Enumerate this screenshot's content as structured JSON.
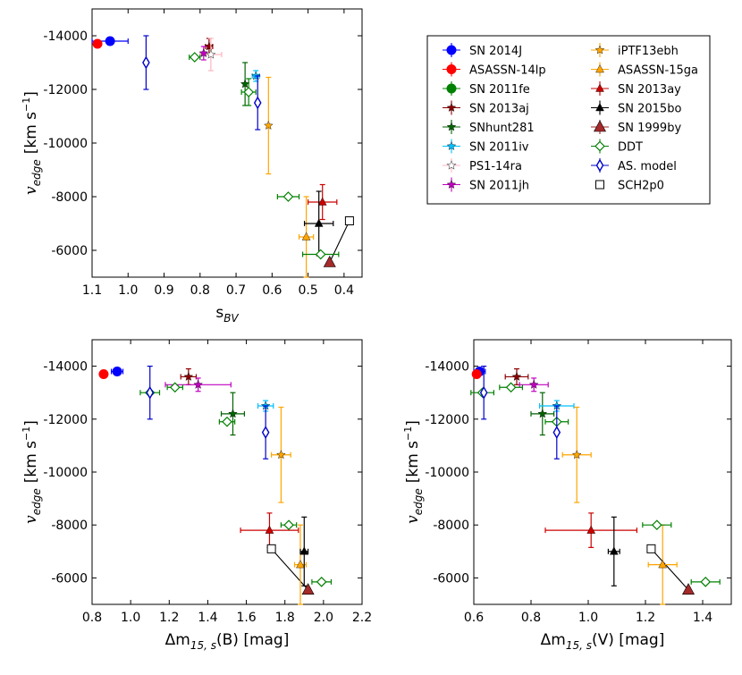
{
  "chart_data": [
    {
      "type": "scatter",
      "id": "top-left",
      "xlabel_main": "s",
      "xlabel_sub": "BV",
      "ylabel_main": "v",
      "ylabel_sub": "edge",
      "ylabel_unit": "[km s",
      "ylabel_exp": "−1",
      "ylabel_close": "]",
      "xlim": [
        1.1,
        0.35
      ],
      "ylim": [
        -5000,
        -15000
      ],
      "xticks": [
        1.1,
        1.0,
        0.9,
        0.8,
        0.7,
        0.6,
        0.5,
        0.4
      ],
      "xtick_labels": [
        "1.1",
        "1.0",
        "0.9",
        "0.8",
        "0.7",
        "0.6",
        "0.5",
        "0.4"
      ],
      "yticks": [
        -14000,
        -12000,
        -10000,
        -8000,
        -6000
      ],
      "ytick_labels": [
        "-14000",
        "-12000",
        "-10000",
        "-8000",
        "-6000"
      ],
      "points": [
        {
          "s": "2014J",
          "x": 1.05,
          "y": -13800,
          "xerr": 0.05
        },
        {
          "s": "14lp",
          "x": 1.085,
          "y": -13700
        },
        {
          "s": "2013aj",
          "x": 0.775,
          "y": -13600,
          "xerr": 0.01,
          "yerr": 300
        },
        {
          "s": "PS1",
          "x": 0.77,
          "y": -13300,
          "xerr": 0.03,
          "yerr": 600
        },
        {
          "s": "2011jh",
          "x": 0.79,
          "y": -13350,
          "yerr": 250
        },
        {
          "s": "hunt",
          "x": 0.675,
          "y": -12200,
          "yerr": 800
        },
        {
          "s": "2011iv",
          "x": 0.645,
          "y": -12500,
          "xerr": 0.01,
          "yerr": 200
        },
        {
          "s": "ebh",
          "x": 0.61,
          "y": -10650,
          "yerr": 1800
        },
        {
          "s": "15ga",
          "x": 0.505,
          "y": -6500,
          "xerr": 0.02,
          "yerr": 1500
        },
        {
          "s": "2013ay",
          "x": 0.46,
          "y": -7800,
          "xerr": 0.04,
          "yerr": 650
        },
        {
          "s": "2015bo",
          "x": 0.47,
          "y": -7000,
          "xerr": 0.04,
          "yerr": 1200
        },
        {
          "s": "1999by",
          "x": 0.44,
          "y": -5550
        },
        {
          "s": "DDT",
          "x": 0.815,
          "y": -13200,
          "xerr": 0.015
        },
        {
          "s": "DDT",
          "x": 0.665,
          "y": -11900,
          "xerr": 0.02,
          "yerr": 500
        },
        {
          "s": "DDT",
          "x": 0.555,
          "y": -8000,
          "xerr": 0.03
        },
        {
          "s": "DDT",
          "x": 0.465,
          "y": -5850,
          "xerr": 0.05
        },
        {
          "s": "AS",
          "x": 0.95,
          "y": -13000,
          "yerr": 1000
        },
        {
          "s": "AS",
          "x": 0.64,
          "y": -11500,
          "yerr": 1000
        },
        {
          "s": "SCH",
          "x": 0.385,
          "y": -7100
        }
      ],
      "line": [
        [
          0.44,
          -5550
        ],
        [
          0.385,
          -7100
        ]
      ]
    },
    {
      "type": "scatter",
      "id": "bottom-left",
      "xlabel_main": "Δm",
      "xlabel_sub": "15, s",
      "xlabel_band": "(B)",
      "xlabel_unit": " [mag]",
      "ylabel_main": "v",
      "ylabel_sub": "edge",
      "ylabel_unit": "[km s",
      "ylabel_exp": "−1",
      "ylabel_close": "]",
      "xlim": [
        0.8,
        2.2
      ],
      "ylim": [
        -5000,
        -15000
      ],
      "xticks": [
        0.8,
        1.0,
        1.2,
        1.4,
        1.6,
        1.8,
        2.0,
        2.2
      ],
      "xtick_labels": [
        "0.8",
        "1.0",
        "1.2",
        "1.4",
        "1.6",
        "1.8",
        "2.0",
        "2.2"
      ],
      "yticks": [
        -14000,
        -12000,
        -10000,
        -8000,
        -6000
      ],
      "ytick_labels": [
        "-14000",
        "-12000",
        "-10000",
        "-8000",
        "-6000"
      ],
      "points": [
        {
          "s": "2014J",
          "x": 0.93,
          "y": -13800,
          "xerr": 0.03
        },
        {
          "s": "14lp",
          "x": 0.86,
          "y": -13700
        },
        {
          "s": "2013aj",
          "x": 1.3,
          "y": -13600,
          "xerr": 0.04,
          "yerr": 300
        },
        {
          "s": "2011jh",
          "x": 1.35,
          "y": -13300,
          "xerr": 0.17,
          "yerr": 250
        },
        {
          "s": "hunt",
          "x": 1.53,
          "y": -12200,
          "xerr": 0.06,
          "yerr": 800
        },
        {
          "s": "2011iv",
          "x": 1.7,
          "y": -12500,
          "xerr": 0.04,
          "yerr": 200
        },
        {
          "s": "ebh",
          "x": 1.78,
          "y": -10650,
          "xerr": 0.05,
          "yerr": 1800
        },
        {
          "s": "15ga",
          "x": 1.88,
          "y": -6500,
          "xerr": 0.03,
          "yerr": 1500
        },
        {
          "s": "2013ay",
          "x": 1.72,
          "y": -7800,
          "xerr": 0.15,
          "yerr": 650
        },
        {
          "s": "2015bo",
          "x": 1.9,
          "y": -7000,
          "xerr": 0.02,
          "yerr": 1300
        },
        {
          "s": "1999by",
          "x": 1.92,
          "y": -5550
        },
        {
          "s": "DDT",
          "x": 1.23,
          "y": -13200,
          "xerr": 0.04
        },
        {
          "s": "DDT",
          "x": 1.1,
          "y": -13000,
          "xerr": 0.05
        },
        {
          "s": "DDT",
          "x": 1.5,
          "y": -11900,
          "xerr": 0.04
        },
        {
          "s": "DDT",
          "x": 1.82,
          "y": -8000,
          "xerr": 0.04
        },
        {
          "s": "DDT",
          "x": 1.99,
          "y": -5850,
          "xerr": 0.05
        },
        {
          "s": "AS",
          "x": 1.1,
          "y": -13000,
          "yerr": 1000
        },
        {
          "s": "AS",
          "x": 1.7,
          "y": -11500,
          "yerr": 1000
        },
        {
          "s": "SCH",
          "x": 1.73,
          "y": -7100
        }
      ],
      "line": [
        [
          1.92,
          -5550
        ],
        [
          1.73,
          -7100
        ]
      ]
    },
    {
      "type": "scatter",
      "id": "bottom-right",
      "xlabel_main": "Δm",
      "xlabel_sub": "15, s",
      "xlabel_band": "(V)",
      "xlabel_unit": " [mag]",
      "ylabel_main": "v",
      "ylabel_sub": "edge",
      "ylabel_unit": "[km s",
      "ylabel_exp": "−1",
      "ylabel_close": "]",
      "xlim": [
        0.6,
        1.5
      ],
      "ylim": [
        -5000,
        -15000
      ],
      "xticks": [
        0.6,
        0.8,
        1.0,
        1.2,
        1.4
      ],
      "xtick_labels": [
        "0.6",
        "0.8",
        "1.0",
        "1.2",
        "1.4"
      ],
      "yticks": [
        -14000,
        -12000,
        -10000,
        -8000,
        -6000
      ],
      "ytick_labels": [
        "-14000",
        "-12000",
        "-10000",
        "-8000",
        "-6000"
      ],
      "points": [
        {
          "s": "2014J",
          "x": 0.62,
          "y": -13800,
          "xerr": 0.02
        },
        {
          "s": "14lp",
          "x": 0.61,
          "y": -13700
        },
        {
          "s": "2013aj",
          "x": 0.75,
          "y": -13600,
          "xerr": 0.04,
          "yerr": 300
        },
        {
          "s": "2011jh",
          "x": 0.81,
          "y": -13300,
          "xerr": 0.05,
          "yerr": 250
        },
        {
          "s": "hunt",
          "x": 0.84,
          "y": -12200,
          "xerr": 0.04,
          "yerr": 800
        },
        {
          "s": "2011iv",
          "x": 0.89,
          "y": -12500,
          "xerr": 0.06,
          "yerr": 200
        },
        {
          "s": "ebh",
          "x": 0.96,
          "y": -10650,
          "xerr": 0.05,
          "yerr": 1800
        },
        {
          "s": "15ga",
          "x": 1.26,
          "y": -6500,
          "xerr": 0.05,
          "yerr": 1500
        },
        {
          "s": "2013ay",
          "x": 1.01,
          "y": -7800,
          "xerr": 0.16,
          "yerr": 650
        },
        {
          "s": "2015bo",
          "x": 1.09,
          "y": -7000,
          "xerr": 0.02,
          "yerr": 1300
        },
        {
          "s": "1999by",
          "x": 1.35,
          "y": -5550
        },
        {
          "s": "DDT",
          "x": 0.73,
          "y": -13200,
          "xerr": 0.04
        },
        {
          "s": "DDT",
          "x": 0.63,
          "y": -13000,
          "xerr": 0.04
        },
        {
          "s": "DDT",
          "x": 0.89,
          "y": -11900,
          "xerr": 0.04
        },
        {
          "s": "DDT",
          "x": 1.24,
          "y": -8000,
          "xerr": 0.05
        },
        {
          "s": "DDT",
          "x": 1.41,
          "y": -5850,
          "xerr": 0.05
        },
        {
          "s": "AS",
          "x": 0.635,
          "y": -13000,
          "yerr": 1000
        },
        {
          "s": "AS",
          "x": 0.89,
          "y": -11500,
          "yerr": 1000
        },
        {
          "s": "SCH",
          "x": 1.22,
          "y": -7100
        }
      ],
      "line": [
        [
          1.35,
          -5550
        ],
        [
          1.22,
          -7100
        ]
      ]
    }
  ],
  "legend": {
    "entries": [
      {
        "key": "2014J",
        "label": "SN 2014J",
        "marker": "circle",
        "color": "#0000ff"
      },
      {
        "key": "14lp",
        "label": "ASASSN-14lp",
        "marker": "circle",
        "color": "#ff0000"
      },
      {
        "key": "2011fe",
        "label": "SN 2011fe",
        "marker": "circle",
        "color": "#008000"
      },
      {
        "key": "2013aj",
        "label": "SN 2013aj",
        "marker": "star",
        "color": "#8b0000"
      },
      {
        "key": "hunt",
        "label": "SNhunt281",
        "marker": "star",
        "color": "#006400"
      },
      {
        "key": "2011iv",
        "label": "SN 2011iv",
        "marker": "star",
        "color": "#00bfff"
      },
      {
        "key": "PS1",
        "label": "PS1-14ra",
        "marker": "star-open",
        "color": "#ffb6c1"
      },
      {
        "key": "2011jh",
        "label": "SN 2011jh",
        "marker": "star",
        "color": "#c000c0"
      },
      {
        "key": "ebh",
        "label": "iPTF13ebh",
        "marker": "star",
        "color": "#ffa500"
      },
      {
        "key": "15ga",
        "label": "ASASSN-15ga",
        "marker": "triangle",
        "color": "#ffa500"
      },
      {
        "key": "2013ay",
        "label": "SN 2013ay",
        "marker": "triangle",
        "color": "#cc0000"
      },
      {
        "key": "2015bo",
        "label": "SN 2015bo",
        "marker": "triangle",
        "color": "#000000"
      },
      {
        "key": "1999by",
        "label": "SN 1999by",
        "marker": "triangle-big",
        "color": "#a52a2a"
      },
      {
        "key": "DDT",
        "label": "DDT",
        "marker": "diamond",
        "color": "#008000"
      },
      {
        "key": "AS",
        "label": "AS. model",
        "marker": "thin-diamond",
        "color": "#0000cc"
      },
      {
        "key": "SCH",
        "label": "SCH2p0",
        "marker": "square",
        "color": "#000000"
      }
    ]
  }
}
